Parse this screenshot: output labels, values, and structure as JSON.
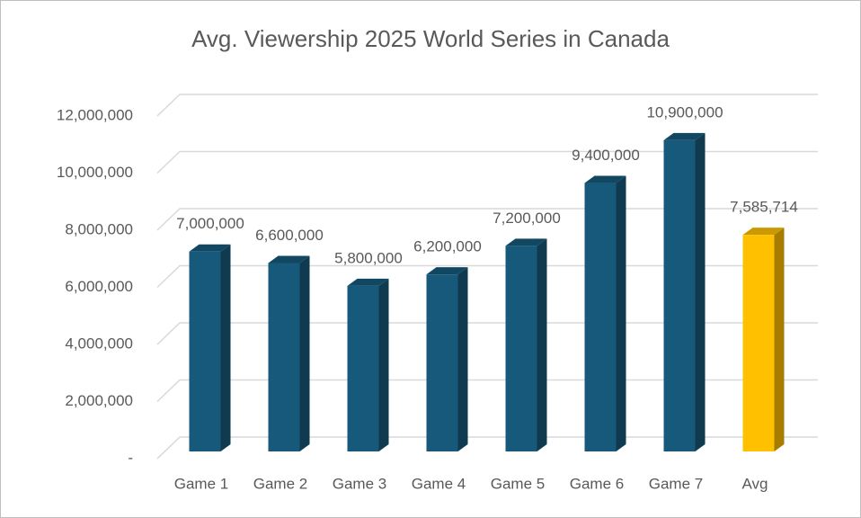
{
  "chart_data": {
    "type": "bar3d",
    "title": "Avg. Viewership 2025 World Series in Canada",
    "categories": [
      "Game 1",
      "Game 2",
      "Game 3",
      "Game 4",
      "Game 5",
      "Game 6",
      "Game 7",
      "Avg"
    ],
    "values": [
      7000000,
      6600000,
      5800000,
      6200000,
      7200000,
      9400000,
      10900000,
      7585714
    ],
    "value_labels": [
      "7,000,000",
      "6,600,000",
      "5,800,000",
      "6,200,000",
      "7,200,000",
      "9,400,000",
      "10,900,000",
      "7,585,714"
    ],
    "colors": [
      "#17597A",
      "#17597A",
      "#17597A",
      "#17597A",
      "#17597A",
      "#17597A",
      "#17597A",
      "#FFC000"
    ],
    "ylim": [
      0,
      12000000
    ],
    "yticks": [
      {
        "value": 0,
        "label": "-"
      },
      {
        "value": 2000000,
        "label": "2,000,000"
      },
      {
        "value": 4000000,
        "label": "4,000,000"
      },
      {
        "value": 6000000,
        "label": "6,000,000"
      },
      {
        "value": 8000000,
        "label": "8,000,000"
      },
      {
        "value": 10000000,
        "label": "10,000,000"
      },
      {
        "value": 12000000,
        "label": "12,000,000"
      }
    ],
    "grid": true
  }
}
